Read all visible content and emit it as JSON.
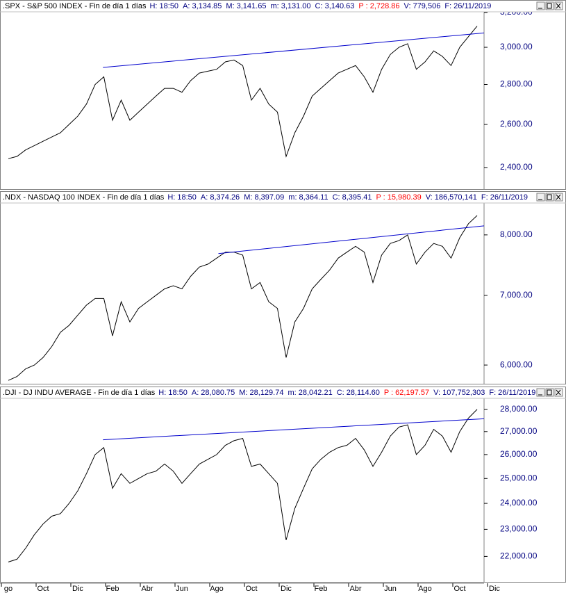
{
  "x_axis": {
    "categories": [
      "go",
      null,
      null,
      null,
      "Oct",
      null,
      null,
      null,
      "Dic",
      null,
      null,
      null,
      "Feb",
      null,
      null,
      null,
      "Abr",
      null,
      null,
      null,
      "Jun",
      null,
      null,
      null,
      "Ago",
      null,
      null,
      null,
      "Oct",
      null,
      null,
      null,
      "Dic",
      null,
      null,
      null,
      "Feb",
      null,
      null,
      null,
      "Abr",
      null,
      null,
      null,
      "Jun",
      null,
      null,
      null,
      "Ago",
      null,
      null,
      null,
      "Oct",
      null,
      null,
      null,
      "Dic"
    ]
  },
  "chart_data": [
    {
      "type": "line",
      "title": ".SPX - S&P 500 INDEX - Fin de día 1 días",
      "fields": [
        {
          "text": "H: 18:50",
          "color": "#000080"
        },
        {
          "text": "A: 3,134.85",
          "color": "#000080"
        },
        {
          "text": "M: 3,141.65",
          "color": "#000080"
        },
        {
          "text": "m: 3,131.00",
          "color": "#000080"
        },
        {
          "text": "C: 3,140.63",
          "color": "#000080"
        },
        {
          "text": "P : 2,728.86",
          "color": "#ff0000"
        },
        {
          "text": "V: 779,506",
          "color": "#000080"
        },
        {
          "text": "F: 26/11/2019",
          "color": "#000080"
        }
      ],
      "log_scale": true,
      "color": "#000000",
      "values": [
        2440,
        2450,
        2480,
        2500,
        2520,
        2540,
        2560,
        2600,
        2640,
        2700,
        2800,
        2840,
        2620,
        2720,
        2620,
        2660,
        2700,
        2740,
        2780,
        2780,
        2760,
        2820,
        2860,
        2870,
        2880,
        2920,
        2930,
        2900,
        2720,
        2780,
        2700,
        2660,
        2450,
        2560,
        2640,
        2740,
        2780,
        2820,
        2860,
        2880,
        2900,
        2840,
        2760,
        2880,
        2960,
        3000,
        3020,
        2880,
        2920,
        2980,
        2950,
        2900,
        3000,
        3060,
        3120,
        null,
        null
      ],
      "trendline": {
        "x": [
          10.9,
          57
        ],
        "values": [
          2890,
          3091
        ],
        "color": "#0000cc"
      },
      "ylim": [
        2306,
        3200
      ],
      "yticks": [
        {
          "value": 2400,
          "label": "2,400.00"
        },
        {
          "value": 2600,
          "label": "2,600.00"
        },
        {
          "value": 2800,
          "label": "2,800.00"
        },
        {
          "value": 3000,
          "label": "3,000.00"
        },
        {
          "value": 3200,
          "label": "3,200.00"
        }
      ]
    },
    {
      "type": "line",
      "title": ".NDX - NASDAQ 100 INDEX - Fin de día 1 días",
      "fields": [
        {
          "text": "H: 18:50",
          "color": "#000080"
        },
        {
          "text": "A: 8,374.26",
          "color": "#000080"
        },
        {
          "text": "M: 8,397.09",
          "color": "#000080"
        },
        {
          "text": "m: 8,364.11",
          "color": "#000080"
        },
        {
          "text": "C: 8,395.41",
          "color": "#000080"
        },
        {
          "text": "P : 15,980.39",
          "color": "#ff0000"
        },
        {
          "text": "V: 186,570,141",
          "color": "#000080"
        },
        {
          "text": "F: 26/11/2019",
          "color": "#000080"
        }
      ],
      "log_scale": true,
      "color": "#000000",
      "values": [
        5800,
        5850,
        5950,
        6000,
        6100,
        6250,
        6450,
        6550,
        6700,
        6850,
        6950,
        6950,
        6400,
        6900,
        6600,
        6800,
        6900,
        7000,
        7100,
        7150,
        7100,
        7300,
        7450,
        7500,
        7600,
        7700,
        7700,
        7650,
        7100,
        7200,
        6900,
        6800,
        6100,
        6600,
        6800,
        7100,
        7250,
        7400,
        7600,
        7700,
        7800,
        7700,
        7200,
        7650,
        7850,
        7900,
        8000,
        7500,
        7700,
        7850,
        7800,
        7600,
        7950,
        8200,
        8350,
        null,
        null
      ],
      "trendline": {
        "x": [
          24.2,
          57
        ],
        "values": [
          7676,
          8198
        ],
        "color": "#0000cc"
      },
      "ylim": [
        5757,
        8571
      ],
      "yticks": [
        {
          "value": 6000,
          "label": "6,000.00"
        },
        {
          "value": 7000,
          "label": "7,000.00"
        },
        {
          "value": 8000,
          "label": "8,000.00"
        }
      ]
    },
    {
      "type": "line",
      "title": ".DJI - DJ INDU AVERAGE - Fin de día 1 días",
      "fields": [
        {
          "text": "H: 18:50",
          "color": "#000080"
        },
        {
          "text": "A: 28,080.75",
          "color": "#000080"
        },
        {
          "text": "M: 28,129.74",
          "color": "#000080"
        },
        {
          "text": "m: 28,042.21",
          "color": "#000080"
        },
        {
          "text": "C: 28,114.60",
          "color": "#000080"
        },
        {
          "text": "P : 62,197.57",
          "color": "#ff0000"
        },
        {
          "text": "V: 107,752,303",
          "color": "#000080"
        },
        {
          "text": "F: 26/11/2019",
          "color": "#000080"
        }
      ],
      "log_scale": true,
      "color": "#000000",
      "values": [
        21800,
        21900,
        22300,
        22800,
        23200,
        23500,
        23600,
        24000,
        24500,
        25200,
        26000,
        26300,
        24600,
        25200,
        24800,
        25000,
        25200,
        25300,
        25600,
        25300,
        24800,
        25200,
        25600,
        25800,
        26000,
        26400,
        26600,
        26700,
        25500,
        25600,
        25200,
        24800,
        22600,
        23800,
        24600,
        25400,
        25800,
        26100,
        26300,
        26400,
        26700,
        26200,
        25500,
        26100,
        26800,
        27200,
        27300,
        26000,
        26400,
        27100,
        26800,
        26100,
        27000,
        27600,
        28000,
        null,
        null
      ],
      "trendline": {
        "x": [
          10.9,
          57
        ],
        "values": [
          26640,
          27622
        ],
        "color": "#0000cc"
      },
      "ylim": [
        21100,
        28480
      ],
      "yticks": [
        {
          "value": 22000,
          "label": "22,000.00"
        },
        {
          "value": 23000,
          "label": "23,000.00"
        },
        {
          "value": 24000,
          "label": "24,000.00"
        },
        {
          "value": 25000,
          "label": "25,000.00"
        },
        {
          "value": 26000,
          "label": "26,000.00"
        },
        {
          "value": 27000,
          "label": "27,000.00"
        },
        {
          "value": 28000,
          "label": "28,000.00"
        }
      ]
    }
  ]
}
